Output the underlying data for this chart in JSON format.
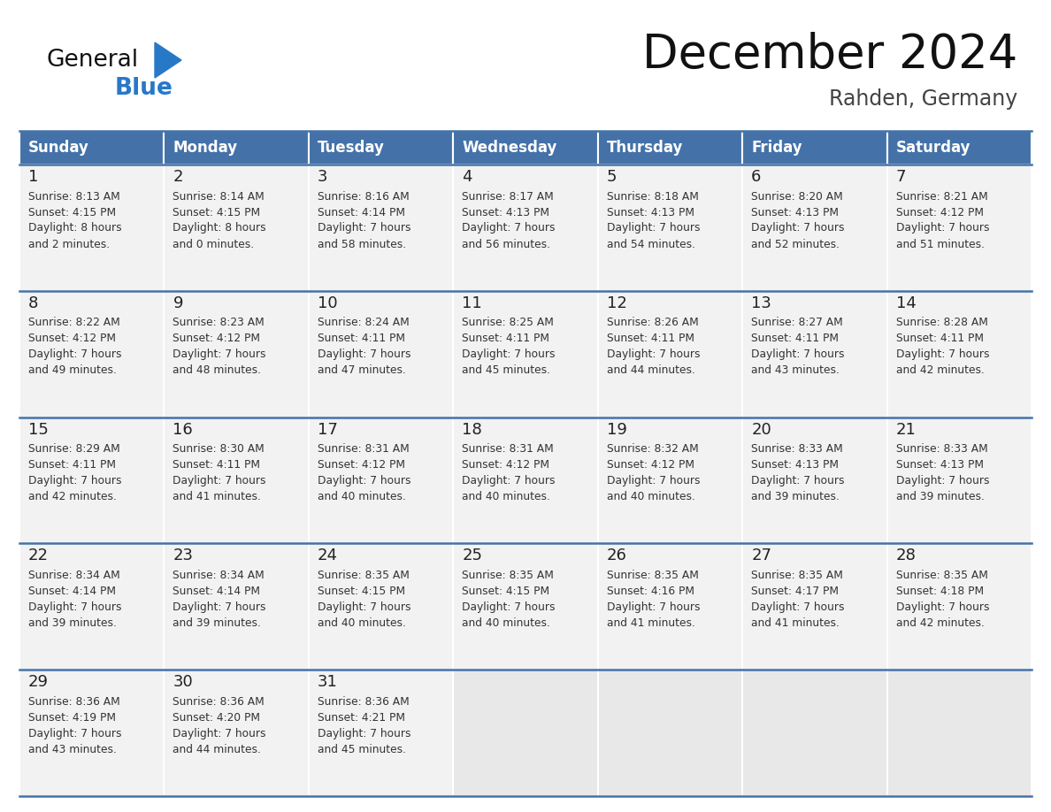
{
  "title": "December 2024",
  "subtitle": "Rahden, Germany",
  "days_of_week": [
    "Sunday",
    "Monday",
    "Tuesday",
    "Wednesday",
    "Thursday",
    "Friday",
    "Saturday"
  ],
  "header_bg_color": "#4472a8",
  "header_text_color": "#ffffff",
  "cell_bg_color": "#f2f2f2",
  "cell_empty_color": "#e8e8e8",
  "cell_text_color": "#333333",
  "day_num_color": "#222222",
  "border_color": "#3a6090",
  "row_sep_color": "#4472a8",
  "title_color": "#111111",
  "subtitle_color": "#444444",
  "logo_general_color": "#111111",
  "logo_blue_color": "#2878c8",
  "weeks": [
    [
      {
        "day": 1,
        "sunrise": "8:13 AM",
        "sunset": "4:15 PM",
        "daylight_h": "8 hours",
        "daylight_m": "and 2 minutes."
      },
      {
        "day": 2,
        "sunrise": "8:14 AM",
        "sunset": "4:15 PM",
        "daylight_h": "8 hours",
        "daylight_m": "and 0 minutes."
      },
      {
        "day": 3,
        "sunrise": "8:16 AM",
        "sunset": "4:14 PM",
        "daylight_h": "7 hours",
        "daylight_m": "and 58 minutes."
      },
      {
        "day": 4,
        "sunrise": "8:17 AM",
        "sunset": "4:13 PM",
        "daylight_h": "7 hours",
        "daylight_m": "and 56 minutes."
      },
      {
        "day": 5,
        "sunrise": "8:18 AM",
        "sunset": "4:13 PM",
        "daylight_h": "7 hours",
        "daylight_m": "and 54 minutes."
      },
      {
        "day": 6,
        "sunrise": "8:20 AM",
        "sunset": "4:13 PM",
        "daylight_h": "7 hours",
        "daylight_m": "and 52 minutes."
      },
      {
        "day": 7,
        "sunrise": "8:21 AM",
        "sunset": "4:12 PM",
        "daylight_h": "7 hours",
        "daylight_m": "and 51 minutes."
      }
    ],
    [
      {
        "day": 8,
        "sunrise": "8:22 AM",
        "sunset": "4:12 PM",
        "daylight_h": "7 hours",
        "daylight_m": "and 49 minutes."
      },
      {
        "day": 9,
        "sunrise": "8:23 AM",
        "sunset": "4:12 PM",
        "daylight_h": "7 hours",
        "daylight_m": "and 48 minutes."
      },
      {
        "day": 10,
        "sunrise": "8:24 AM",
        "sunset": "4:11 PM",
        "daylight_h": "7 hours",
        "daylight_m": "and 47 minutes."
      },
      {
        "day": 11,
        "sunrise": "8:25 AM",
        "sunset": "4:11 PM",
        "daylight_h": "7 hours",
        "daylight_m": "and 45 minutes."
      },
      {
        "day": 12,
        "sunrise": "8:26 AM",
        "sunset": "4:11 PM",
        "daylight_h": "7 hours",
        "daylight_m": "and 44 minutes."
      },
      {
        "day": 13,
        "sunrise": "8:27 AM",
        "sunset": "4:11 PM",
        "daylight_h": "7 hours",
        "daylight_m": "and 43 minutes."
      },
      {
        "day": 14,
        "sunrise": "8:28 AM",
        "sunset": "4:11 PM",
        "daylight_h": "7 hours",
        "daylight_m": "and 42 minutes."
      }
    ],
    [
      {
        "day": 15,
        "sunrise": "8:29 AM",
        "sunset": "4:11 PM",
        "daylight_h": "7 hours",
        "daylight_m": "and 42 minutes."
      },
      {
        "day": 16,
        "sunrise": "8:30 AM",
        "sunset": "4:11 PM",
        "daylight_h": "7 hours",
        "daylight_m": "and 41 minutes."
      },
      {
        "day": 17,
        "sunrise": "8:31 AM",
        "sunset": "4:12 PM",
        "daylight_h": "7 hours",
        "daylight_m": "and 40 minutes."
      },
      {
        "day": 18,
        "sunrise": "8:31 AM",
        "sunset": "4:12 PM",
        "daylight_h": "7 hours",
        "daylight_m": "and 40 minutes."
      },
      {
        "day": 19,
        "sunrise": "8:32 AM",
        "sunset": "4:12 PM",
        "daylight_h": "7 hours",
        "daylight_m": "and 40 minutes."
      },
      {
        "day": 20,
        "sunrise": "8:33 AM",
        "sunset": "4:13 PM",
        "daylight_h": "7 hours",
        "daylight_m": "and 39 minutes."
      },
      {
        "day": 21,
        "sunrise": "8:33 AM",
        "sunset": "4:13 PM",
        "daylight_h": "7 hours",
        "daylight_m": "and 39 minutes."
      }
    ],
    [
      {
        "day": 22,
        "sunrise": "8:34 AM",
        "sunset": "4:14 PM",
        "daylight_h": "7 hours",
        "daylight_m": "and 39 minutes."
      },
      {
        "day": 23,
        "sunrise": "8:34 AM",
        "sunset": "4:14 PM",
        "daylight_h": "7 hours",
        "daylight_m": "and 39 minutes."
      },
      {
        "day": 24,
        "sunrise": "8:35 AM",
        "sunset": "4:15 PM",
        "daylight_h": "7 hours",
        "daylight_m": "and 40 minutes."
      },
      {
        "day": 25,
        "sunrise": "8:35 AM",
        "sunset": "4:15 PM",
        "daylight_h": "7 hours",
        "daylight_m": "and 40 minutes."
      },
      {
        "day": 26,
        "sunrise": "8:35 AM",
        "sunset": "4:16 PM",
        "daylight_h": "7 hours",
        "daylight_m": "and 41 minutes."
      },
      {
        "day": 27,
        "sunrise": "8:35 AM",
        "sunset": "4:17 PM",
        "daylight_h": "7 hours",
        "daylight_m": "and 41 minutes."
      },
      {
        "day": 28,
        "sunrise": "8:35 AM",
        "sunset": "4:18 PM",
        "daylight_h": "7 hours",
        "daylight_m": "and 42 minutes."
      }
    ],
    [
      {
        "day": 29,
        "sunrise": "8:36 AM",
        "sunset": "4:19 PM",
        "daylight_h": "7 hours",
        "daylight_m": "and 43 minutes."
      },
      {
        "day": 30,
        "sunrise": "8:36 AM",
        "sunset": "4:20 PM",
        "daylight_h": "7 hours",
        "daylight_m": "and 44 minutes."
      },
      {
        "day": 31,
        "sunrise": "8:36 AM",
        "sunset": "4:21 PM",
        "daylight_h": "7 hours",
        "daylight_m": "and 45 minutes."
      },
      null,
      null,
      null,
      null
    ]
  ]
}
